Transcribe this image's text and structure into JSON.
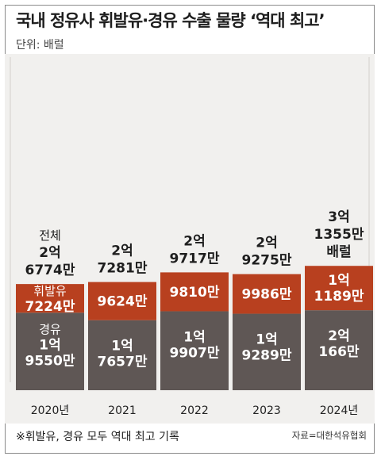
{
  "header": {
    "title": "국내 정유사 휘발유·경유 수출 물량 ‘역대 최고’",
    "unit": "단위: 배럴"
  },
  "footer": {
    "note": "※휘발유, 경유 모두 역대 최고 기록",
    "source": "자료=대한석유협회"
  },
  "colors": {
    "diesel": "#5f5755",
    "gasoline": "#b8401f",
    "panel": "#f1f0ee"
  },
  "chart_data": {
    "type": "bar",
    "stacked": true,
    "categories": [
      "2020년",
      "2021",
      "2022",
      "2023",
      "2024년"
    ],
    "series": [
      {
        "name": "경유",
        "values": [
          195500000,
          176570000,
          199070000,
          192890000,
          201660000
        ]
      },
      {
        "name": "휘발유",
        "values": [
          72240000,
          96240000,
          98100000,
          99860000,
          111890000
        ]
      }
    ],
    "totals": [
      267740000,
      272810000,
      297170000,
      292750000,
      313550000
    ],
    "total_labels": [
      [
        "전체",
        "2억",
        "6774만"
      ],
      [
        "2억",
        "7281만"
      ],
      [
        "2억",
        "9717만"
      ],
      [
        "2억",
        "9275만"
      ],
      [
        "3억",
        "1355만",
        "배럴"
      ]
    ],
    "diesel_labels": [
      [
        "경유",
        "1억",
        "9550만"
      ],
      [
        "1억",
        "7657만"
      ],
      [
        "1억",
        "9907만"
      ],
      [
        "1억",
        "9289만"
      ],
      [
        "2억",
        "166만"
      ]
    ],
    "gasoline_labels": [
      [
        "휘발유",
        "7224만"
      ],
      [
        "9624만"
      ],
      [
        "9810만"
      ],
      [
        "9986만"
      ],
      [
        "1억",
        "1189만"
      ]
    ],
    "ylim": [
      0,
      320000000
    ],
    "xlabel": "",
    "ylabel": "",
    "grid": false,
    "legend": "none"
  }
}
